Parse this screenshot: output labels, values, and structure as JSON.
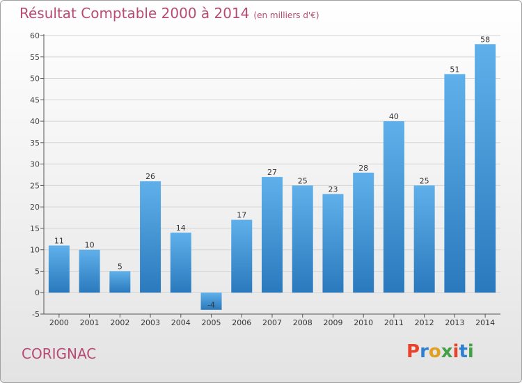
{
  "header": {
    "title": "Résultat Comptable 2000 à 2014",
    "subtitle": "(en milliers d'€)"
  },
  "footer": {
    "location": "CORIGNAC",
    "brand": "Proxiti",
    "brand_colors": [
      "#e8432a",
      "#2e7fd0",
      "#e0a020",
      "#43a047",
      "#e8432a",
      "#2e7fd0",
      "#43a047"
    ]
  },
  "colors": {
    "bar_top": "#5fb0ea",
    "bar_bottom": "#2a79bd",
    "title": "#b84a73",
    "grid": "#d4d4d4"
  },
  "chart_data": {
    "type": "bar",
    "title": "Résultat Comptable 2000 à 2014",
    "xlabel": "",
    "ylabel": "",
    "ylim": [
      -5,
      60
    ],
    "yticks": [
      -5,
      0,
      5,
      10,
      15,
      20,
      25,
      30,
      35,
      40,
      45,
      50,
      55,
      60
    ],
    "categories": [
      "2000",
      "2001",
      "2002",
      "2003",
      "2004",
      "2005",
      "2006",
      "2007",
      "2008",
      "2009",
      "2010",
      "2011",
      "2012",
      "2013",
      "2014"
    ],
    "values": [
      11,
      10,
      5,
      26,
      14,
      -4,
      17,
      27,
      25,
      23,
      28,
      40,
      25,
      51,
      58
    ],
    "labels": [
      "11",
      "10",
      "5",
      "26",
      "14",
      "-4",
      "17",
      "27",
      "25",
      "23",
      "28",
      "40",
      "25",
      "51",
      "58"
    ]
  }
}
